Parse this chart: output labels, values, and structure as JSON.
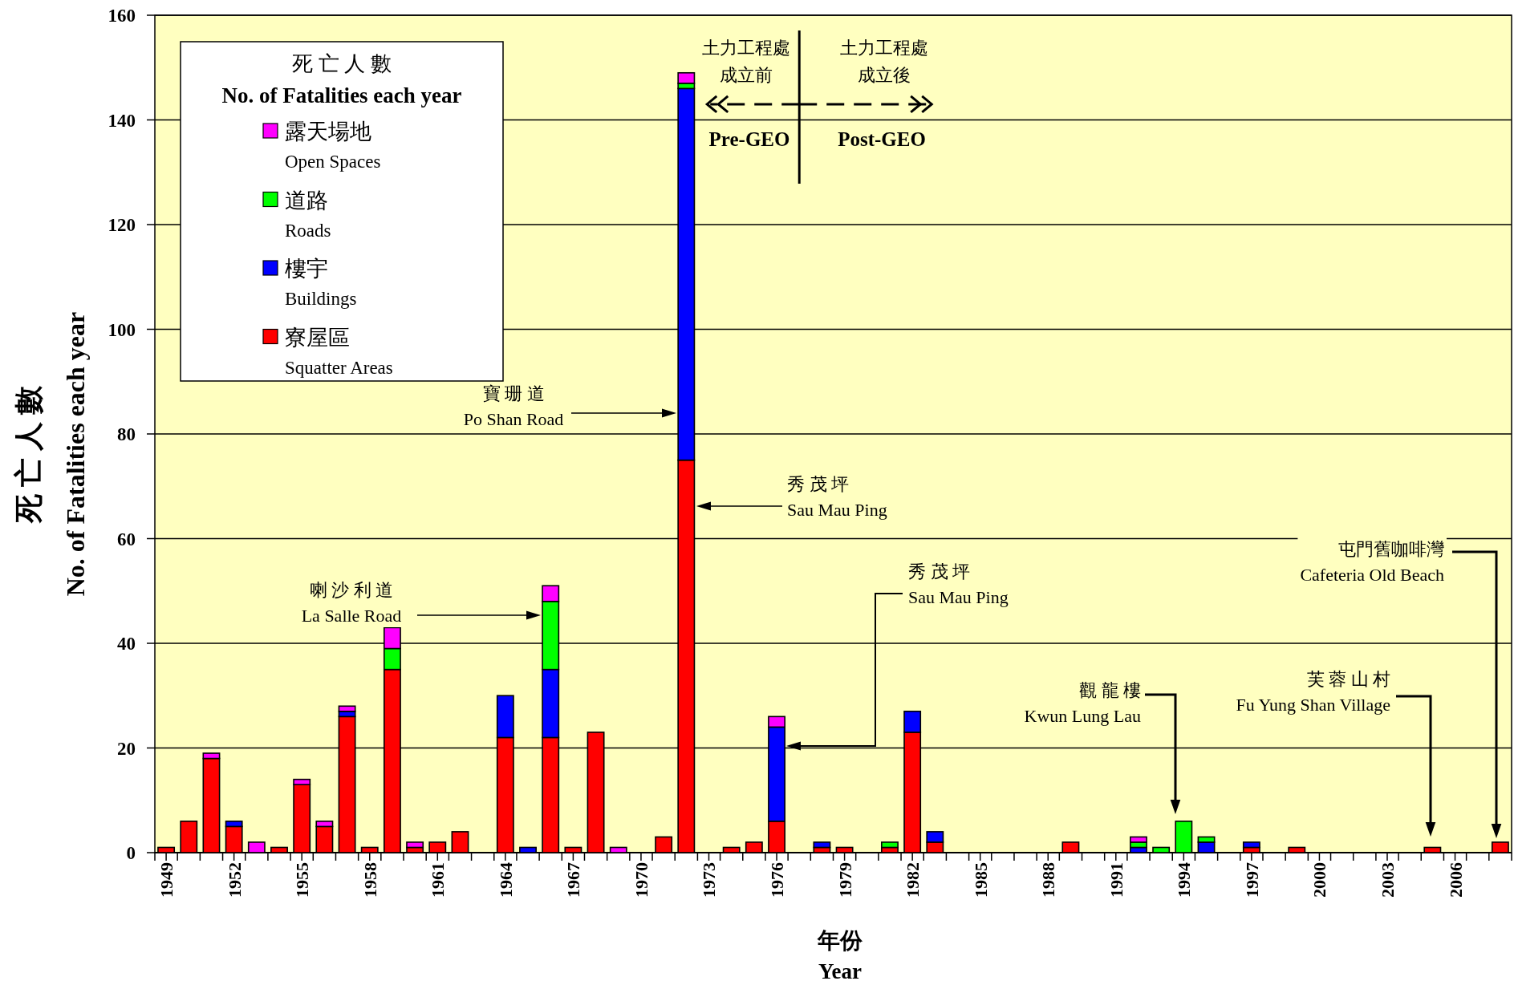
{
  "chart_data": {
    "type": "bar",
    "stacked": true,
    "x": [
      1949,
      1950,
      1951,
      1952,
      1953,
      1954,
      1955,
      1956,
      1957,
      1958,
      1959,
      1960,
      1961,
      1962,
      1963,
      1964,
      1965,
      1966,
      1967,
      1968,
      1969,
      1970,
      1971,
      1972,
      1973,
      1974,
      1975,
      1976,
      1977,
      1978,
      1979,
      1980,
      1981,
      1982,
      1983,
      1984,
      1985,
      1986,
      1987,
      1988,
      1989,
      1990,
      1991,
      1992,
      1993,
      1994,
      1995,
      1996,
      1997,
      1998,
      1999,
      2000,
      2001,
      2002,
      2003,
      2004,
      2005,
      2006,
      2007,
      2008
    ],
    "series": [
      {
        "name": "寮屋區\nSquatter Areas",
        "color": "#ff0000",
        "values": [
          1,
          6,
          18,
          5,
          null,
          1,
          13,
          5,
          26,
          1,
          35,
          1,
          2,
          4,
          null,
          22,
          null,
          22,
          1,
          23,
          null,
          null,
          3,
          75,
          null,
          1,
          2,
          6,
          null,
          1,
          1,
          null,
          1,
          23,
          2,
          null,
          null,
          null,
          null,
          null,
          2,
          null,
          null,
          null,
          null,
          null,
          null,
          null,
          1,
          null,
          1,
          null,
          null,
          null,
          null,
          null,
          1,
          null,
          null,
          2
        ]
      },
      {
        "name": "樓宇\nBuildings",
        "color": "#0000ff",
        "values": [
          null,
          null,
          null,
          1,
          null,
          null,
          null,
          null,
          1,
          null,
          null,
          null,
          null,
          null,
          null,
          8,
          1,
          13,
          null,
          null,
          null,
          null,
          null,
          71,
          null,
          null,
          null,
          18,
          null,
          1,
          null,
          null,
          null,
          4,
          2,
          null,
          null,
          null,
          null,
          null,
          null,
          null,
          null,
          1,
          null,
          null,
          2,
          null,
          1,
          null,
          null,
          null,
          null,
          null,
          null,
          null,
          null,
          null,
          null,
          null
        ]
      },
      {
        "name": "道路\nRoads",
        "color": "#00ff00",
        "values": [
          null,
          null,
          null,
          null,
          null,
          null,
          null,
          null,
          null,
          null,
          4,
          null,
          null,
          null,
          null,
          null,
          null,
          13,
          null,
          null,
          null,
          null,
          null,
          1,
          null,
          null,
          null,
          null,
          null,
          null,
          null,
          null,
          1,
          null,
          null,
          null,
          null,
          null,
          null,
          null,
          null,
          null,
          null,
          1,
          1,
          6,
          1,
          null,
          null,
          null,
          null,
          null,
          null,
          null,
          null,
          null,
          null,
          null,
          null,
          null
        ]
      },
      {
        "name": "露天場地\nOpen Spaces",
        "color": "#ff00ff",
        "values": [
          null,
          null,
          1,
          null,
          2,
          null,
          1,
          1,
          1,
          null,
          4,
          1,
          null,
          null,
          null,
          null,
          null,
          3,
          null,
          null,
          1,
          null,
          null,
          2,
          null,
          null,
          null,
          2,
          null,
          null,
          null,
          null,
          null,
          null,
          null,
          null,
          null,
          null,
          null,
          null,
          null,
          null,
          null,
          1,
          null,
          null,
          null,
          null,
          null,
          null,
          null,
          null,
          null,
          null,
          null,
          null,
          null,
          null,
          null,
          null
        ]
      }
    ],
    "xlim": [
      1948.5,
      2008.5
    ],
    "xticks": [
      1949,
      1952,
      1955,
      1958,
      1961,
      1964,
      1967,
      1970,
      1973,
      1976,
      1979,
      1982,
      1985,
      1988,
      1991,
      1994,
      1997,
      2000,
      2003,
      2006,
      {
        "value": 1948.5,
        "label": null
      },
      {
        "value": 1949.5,
        "label": null
      },
      {
        "value": 1950.5,
        "label": null
      },
      {
        "value": 1951.5,
        "label": null
      },
      {
        "value": 1952.5,
        "label": null
      },
      {
        "value": 1953.5,
        "label": null
      },
      {
        "value": 1954.5,
        "label": null
      },
      {
        "value": 1955.5,
        "label": null
      },
      {
        "value": 1956.5,
        "label": null
      },
      {
        "value": 1957.5,
        "label": null
      },
      {
        "value": 1958.5,
        "label": null
      },
      {
        "value": 1959.5,
        "label": null
      },
      {
        "value": 1960.5,
        "label": null
      },
      {
        "value": 1961.5,
        "label": null
      },
      {
        "value": 1962.5,
        "label": null
      },
      {
        "value": 1963.5,
        "label": null
      },
      {
        "value": 1964.5,
        "label": null
      },
      {
        "value": 1965.5,
        "label": null
      },
      {
        "value": 1966.5,
        "label": null
      },
      {
        "value": 1967.5,
        "label": null
      },
      {
        "value": 1968.5,
        "label": null
      },
      {
        "value": 1969.5,
        "label": null
      },
      {
        "value": 1970.5,
        "label": null
      },
      {
        "value": 1971.5,
        "label": null
      },
      {
        "value": 1972.5,
        "label": null
      },
      {
        "value": 1973.5,
        "label": null
      },
      {
        "value": 1974.5,
        "label": null
      },
      {
        "value": 1975.5,
        "label": null
      },
      {
        "value": 1976.5,
        "label": null
      },
      {
        "value": 1977.5,
        "label": null
      },
      {
        "value": 1978.5,
        "label": null
      },
      {
        "value": 1979.5,
        "label": null
      },
      {
        "value": 1980.5,
        "label": null
      },
      {
        "value": 1981.5,
        "label": null
      },
      {
        "value": 1982.5,
        "label": null
      },
      {
        "value": 1983.5,
        "label": null
      },
      {
        "value": 1984.5,
        "label": null
      },
      {
        "value": 1985.5,
        "label": null
      },
      {
        "value": 1986.5,
        "label": null
      },
      {
        "value": 1987.5,
        "label": null
      },
      {
        "value": 1988.5,
        "label": null
      },
      {
        "value": 1989.5,
        "label": null
      },
      {
        "value": 1990.5,
        "label": null
      },
      {
        "value": 1991.5,
        "label": null
      },
      {
        "value": 1992.5,
        "label": null
      },
      {
        "value": 1993.5,
        "label": null
      },
      {
        "value": 1994.5,
        "label": null
      },
      {
        "value": 1995.5,
        "label": null
      },
      {
        "value": 1996.5,
        "label": null
      },
      {
        "value": 1997.5,
        "label": null
      },
      {
        "value": 1998.5,
        "label": null
      },
      {
        "value": 1999.5,
        "label": null
      },
      {
        "value": 2000.5,
        "label": null
      },
      {
        "value": 2001.5,
        "label": null
      },
      {
        "value": 2002.5,
        "label": null
      },
      {
        "value": 2003.5,
        "label": null
      },
      {
        "value": 2004.5,
        "label": null
      },
      {
        "value": 2005.5,
        "label": null
      },
      {
        "value": 2006.5,
        "label": null
      },
      {
        "value": 2007.5,
        "label": null
      },
      {
        "value": 2008.5,
        "label": null
      }
    ],
    "ylim": [
      0,
      160
    ],
    "yticks": [
      0,
      20,
      40,
      60,
      80,
      100,
      120,
      140,
      160
    ],
    "grid": "y",
    "legend": "top left",
    "legend_title": "死 亡 人 數\nNo. of Fatalities each year",
    "ylabel": "死 亡 人 數\nNo. of Fatalities each year",
    "xlabel": "年份\nYear",
    "ref_lines": [
      {
        "axis": "x",
        "value": 1977
      }
    ],
    "annotations": [
      "寶 珊 道\nPo Shan Road",
      "喇 沙 利 道\nLa Salle Road",
      "秀 茂 坪\nSau Mau Ping",
      "秀 茂 坪\nSau Mau Ping",
      "觀 龍 樓\nKwun Lung Lau",
      "芙 蓉 山 村\nFu Yung Shan Village",
      "屯門舊咖啡灣\nCafeteria Old Beach",
      {
        "text": "土力工程處成立前",
        "x": 1977,
        "y": 143
      },
      "Pre-GEO",
      {
        "text": "土力工程處成立後",
        "x": 1977,
        "y": 143
      },
      "Post-GEO"
    ]
  }
}
